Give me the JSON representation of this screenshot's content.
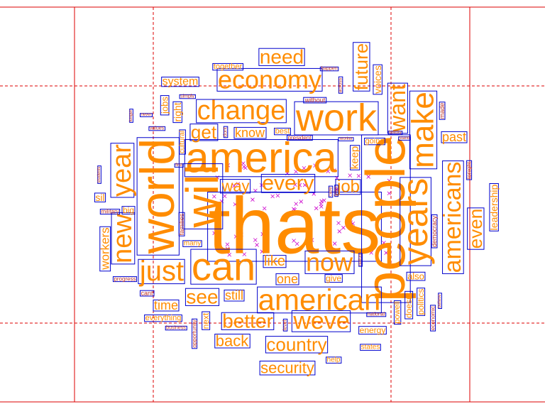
{
  "colors": {
    "word": "#ff8c00",
    "box": "#0000cc",
    "grid": "#dd0000",
    "marker": "#cc00cc",
    "background": "#ffffff"
  },
  "word_cloud": {
    "words": [
      {
        "text": "thats",
        "weight": 100
      },
      {
        "text": "people",
        "weight": 70
      },
      {
        "text": "america",
        "weight": 62
      },
      {
        "text": "world",
        "weight": 60
      },
      {
        "text": "will",
        "weight": 60
      },
      {
        "text": "work",
        "weight": 52
      },
      {
        "text": "can",
        "weight": 52
      },
      {
        "text": "years",
        "weight": 48
      },
      {
        "text": "american",
        "weight": 44
      },
      {
        "text": "make",
        "weight": 40
      },
      {
        "text": "americans",
        "weight": 38
      },
      {
        "text": "change",
        "weight": 36
      },
      {
        "text": "just",
        "weight": 36
      },
      {
        "text": "year",
        "weight": 36
      },
      {
        "text": "new",
        "weight": 36
      },
      {
        "text": "economy",
        "weight": 34
      },
      {
        "text": "weve",
        "weight": 34
      },
      {
        "text": "now",
        "weight": 34
      },
      {
        "text": "every",
        "weight": 32
      },
      {
        "text": "want",
        "weight": 32
      },
      {
        "text": "better",
        "weight": 28
      },
      {
        "text": "need",
        "weight": 28
      },
      {
        "text": "future",
        "weight": 27
      },
      {
        "text": "country",
        "weight": 27
      },
      {
        "text": "see",
        "weight": 27
      },
      {
        "text": "even",
        "weight": 26
      },
      {
        "text": "get",
        "weight": 25
      },
      {
        "text": "job",
        "weight": 24
      },
      {
        "text": "security",
        "weight": 22
      },
      {
        "text": "back",
        "weight": 22
      },
      {
        "text": "way",
        "weight": 20
      },
      {
        "text": "like",
        "weight": 20
      },
      {
        "text": "one",
        "weight": 19
      },
      {
        "text": "time",
        "weight": 18
      },
      {
        "text": "workers",
        "weight": 17
      },
      {
        "text": "past",
        "weight": 17
      },
      {
        "text": "know",
        "weight": 17
      },
      {
        "text": "still",
        "weight": 17
      },
      {
        "text": "system",
        "weight": 16
      },
      {
        "text": "voices",
        "weight": 15
      },
      {
        "text": "keep",
        "weight": 15
      },
      {
        "text": "leadership",
        "weight": 14
      },
      {
        "text": "right",
        "weight": 14
      },
      {
        "text": "jobs",
        "weight": 14
      },
      {
        "text": "sil",
        "weight": 14
      },
      {
        "text": "big",
        "weight": 13
      },
      {
        "text": "also",
        "weight": 13
      },
      {
        "text": "give",
        "weight": 12
      },
      {
        "text": "next",
        "weight": 12
      },
      {
        "text": "energy",
        "weight": 12
      },
      {
        "text": "doesnt",
        "weight": 12
      },
      {
        "text": "politics",
        "weight": 12
      },
      {
        "text": "powell",
        "weight": 11
      },
      {
        "text": "going",
        "weight": 11
      },
      {
        "text": "best",
        "weight": 11
      },
      {
        "text": "together",
        "weight": 11
      },
      {
        "text": "everything",
        "weight": 11
      },
      {
        "text": "cultural",
        "weight": 10
      },
      {
        "text": "states",
        "weight": 10
      },
      {
        "text": "help",
        "weight": 10
      },
      {
        "text": "democracy",
        "weight": 9
      },
      {
        "text": "families",
        "weight": 9
      },
      {
        "text": "opportunity",
        "weight": 8
      },
      {
        "text": "many",
        "weight": 10
      },
      {
        "text": "cant",
        "weight": 9
      },
      {
        "text": "without",
        "weight": 9
      },
      {
        "text": "made",
        "weight": 9
      },
      {
        "text": "tonight",
        "weight": 8
      },
      {
        "text": "economic",
        "weight": 8
      },
      {
        "text": "progress",
        "weight": 8
      },
      {
        "text": "military",
        "weight": 8
      },
      {
        "text": "president",
        "weight": 8
      },
      {
        "text": "happen",
        "weight": 7
      },
      {
        "text": "across",
        "weight": 7
      },
      {
        "text": "simply",
        "weight": 7
      },
      {
        "text": "national",
        "weight": 7
      },
      {
        "text": "business",
        "weight": 7
      },
      {
        "text": "level",
        "weight": 7
      },
      {
        "text": "care",
        "weight": 7
      },
      {
        "text": "dont",
        "weight": 7
      },
      {
        "text": "values",
        "weight": 7
      },
      {
        "text": "worker",
        "weight": 6
      },
      {
        "text": "never",
        "weight": 6
      },
      {
        "text": "students",
        "weight": 6
      },
      {
        "text": "believe",
        "weight": 6
      },
      {
        "text": "history",
        "weight": 6
      },
      {
        "text": "nation",
        "weight": 6
      },
      {
        "text": "stand",
        "weight": 6
      },
      {
        "text": "longer",
        "weight": 6
      },
      {
        "text": "hope",
        "weight": 6
      },
      {
        "text": "first",
        "weight": 6
      }
    ]
  }
}
